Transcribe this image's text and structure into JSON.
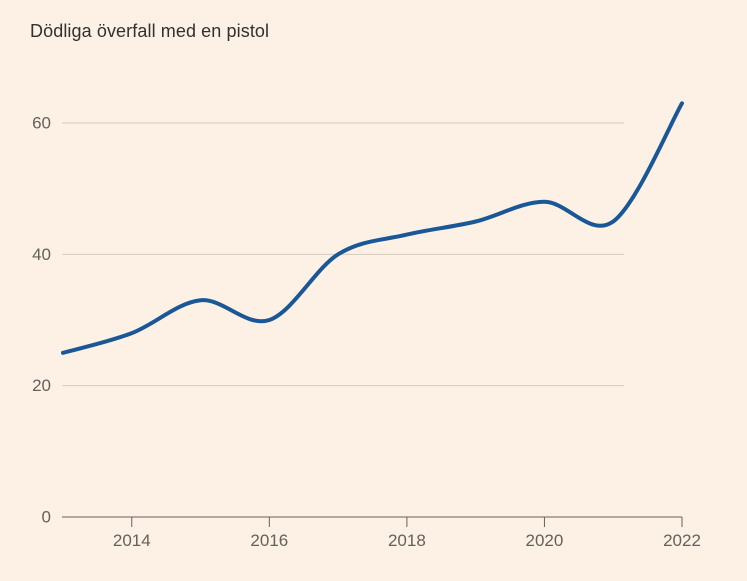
{
  "title": "Dödliga överfall med en pistol",
  "colors": {
    "background": "#fdf1e5",
    "line": "#1a5796",
    "grid": "#d5c9bd",
    "axis": "#66605a",
    "tick_label": "#66605a",
    "title_text": "#33302e"
  },
  "chart_data": {
    "type": "line",
    "title": "Dödliga överfall med en pistol",
    "x": [
      2013,
      2014,
      2015,
      2016,
      2017,
      2018,
      2019,
      2020,
      2021,
      2022
    ],
    "values": [
      25,
      28,
      33,
      30,
      40,
      43,
      45,
      48,
      45,
      63
    ],
    "series": [
      {
        "name": "Dödliga överfall med en pistol",
        "values": [
          25,
          28,
          33,
          30,
          40,
          43,
          45,
          48,
          45,
          63
        ]
      }
    ],
    "xlabel": "",
    "ylabel": "",
    "xlim": [
      2013,
      2022
    ],
    "ylim": [
      0,
      66
    ],
    "y_ticks": [
      0,
      20,
      40,
      60
    ],
    "x_tick_labels": [
      "2014",
      "2016",
      "2018",
      "2020",
      "2022"
    ],
    "x_tick_years": [
      2014,
      2016,
      2018,
      2020,
      2022
    ],
    "grid": "horizontal",
    "legend": "none",
    "line_style": "smooth"
  }
}
